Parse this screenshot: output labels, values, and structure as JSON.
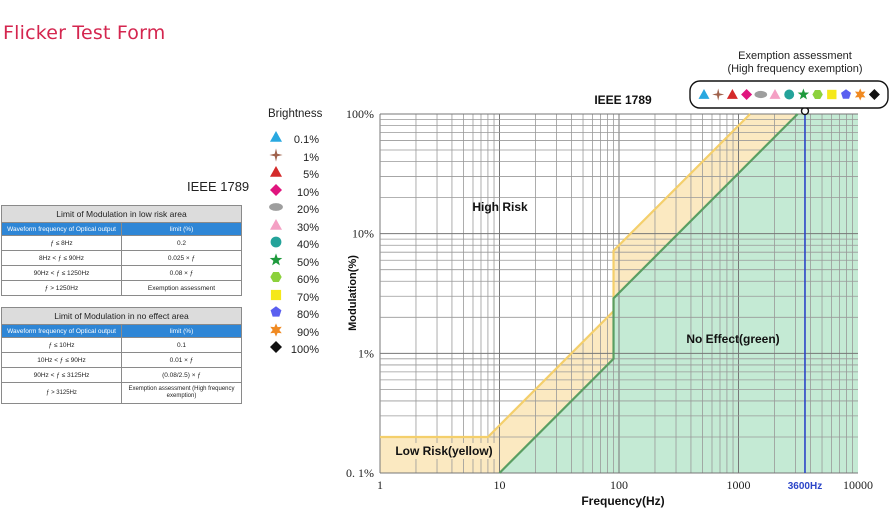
{
  "page": {
    "title": "Flicker Test Form"
  },
  "table": {
    "title": "IEEE 1789",
    "low_risk": {
      "title": "Limit of Modulation in low risk area",
      "header": [
        "Waveform frequency of Optical output",
        "limit (%)"
      ],
      "rows": [
        [
          "ƒ ≤ 8Hz",
          "0.2"
        ],
        [
          "8Hz < ƒ ≤ 90Hz",
          "0.025 × ƒ"
        ],
        [
          "90Hz < ƒ ≤ 1250Hz",
          "0.08 × ƒ"
        ],
        [
          "ƒ > 1250Hz",
          "Exemption assessment"
        ]
      ]
    },
    "no_effect": {
      "title": "Limit of Modulation in no effect area",
      "header": [
        "Waveform frequency of Optical output",
        "limit (%)"
      ],
      "rows": [
        [
          "ƒ ≤ 10Hz",
          "0.1"
        ],
        [
          "10Hz < ƒ ≤ 90Hz",
          "0.01 × ƒ"
        ],
        [
          "90Hz < ƒ ≤ 3125Hz",
          "(0.08/2.5) × ƒ"
        ],
        [
          "ƒ > 3125Hz",
          "Exemption assessment (High frequency exemption)"
        ]
      ]
    }
  },
  "legend": {
    "title": "Brightness",
    "items": [
      {
        "label": "0.1%",
        "shape": "triangle",
        "color": "#29a8e0"
      },
      {
        "label": "1%",
        "shape": "star4",
        "color": "#a0624c"
      },
      {
        "label": "5%",
        "shape": "triangle",
        "color": "#d42a2a"
      },
      {
        "label": "10%",
        "shape": "diamond",
        "color": "#e0157e"
      },
      {
        "label": "20%",
        "shape": "ellipse",
        "color": "#9e9e9e"
      },
      {
        "label": "30%",
        "shape": "triangle",
        "color": "#f4a0c4"
      },
      {
        "label": "40%",
        "shape": "circle",
        "color": "#24a39a"
      },
      {
        "label": "50%",
        "shape": "star5",
        "color": "#1e9a3c"
      },
      {
        "label": "60%",
        "shape": "hexagon",
        "color": "#8cd13c"
      },
      {
        "label": "70%",
        "shape": "square",
        "color": "#f5e81a"
      },
      {
        "label": "80%",
        "shape": "pentagon",
        "color": "#5a5ff0"
      },
      {
        "label": "90%",
        "shape": "star6",
        "color": "#f08a22"
      },
      {
        "label": "100%",
        "shape": "diamond",
        "color": "#111111"
      }
    ]
  },
  "exemption": {
    "title_line1": "Exemption assessment",
    "title_line2": "(High frequency exemption)"
  },
  "chart_data": {
    "type": "area",
    "title": "IEEE 1789",
    "xlabel": "Frequency(Hz)",
    "ylabel": "Modulation(%)",
    "x_scale": "log",
    "y_scale": "log",
    "xlim": [
      1,
      10000
    ],
    "ylim": [
      0.1,
      100
    ],
    "x_ticks": [
      "1",
      "10",
      "100",
      "1000",
      "10000"
    ],
    "y_ticks": [
      "0. 1%",
      "1%",
      "10%",
      "100%"
    ],
    "grid": true,
    "series": [
      {
        "name": "Low Risk(yellow)",
        "color": "#f4cf6b",
        "fill": "#fbe9c1",
        "points": [
          [
            1,
            0.2
          ],
          [
            8,
            0.2
          ],
          [
            90,
            2.25
          ],
          [
            90,
            7.2
          ],
          [
            1250,
            100
          ]
        ]
      },
      {
        "name": "No Effect(green)",
        "color": "#5a9e62",
        "fill": "#c4ead4",
        "points": [
          [
            10,
            0.1
          ],
          [
            90,
            0.9
          ],
          [
            90,
            2.88
          ],
          [
            3125,
            100
          ]
        ]
      }
    ],
    "region_labels": [
      "High Risk",
      "No Effect(green)",
      "Low Risk(yellow)"
    ],
    "marker_line": {
      "x": 3600,
      "label": "3600Hz",
      "color": "#2b45c8"
    }
  }
}
